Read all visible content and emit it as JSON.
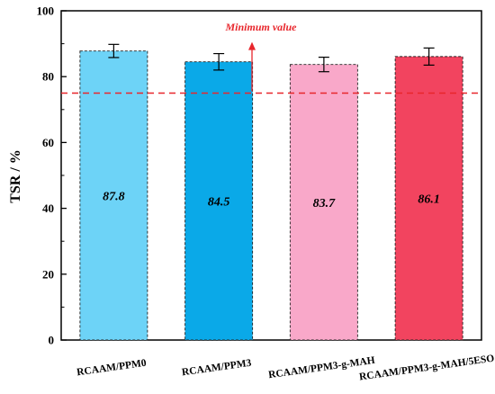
{
  "chart_data": {
    "type": "bar",
    "title": "",
    "xlabel": "",
    "ylabel": "TSR / %",
    "ylim": [
      0,
      100
    ],
    "yticks": [
      0,
      20,
      40,
      60,
      80,
      100
    ],
    "grid": false,
    "categories": [
      "RCAAM/PPM0",
      "RCAAM/PPM3",
      "RCAAM/PPM3-g-MAH",
      "RCAAM/PPM3-g-MAH/5ESO"
    ],
    "values": [
      87.8,
      84.5,
      83.7,
      86.1
    ],
    "errors": [
      2.0,
      2.5,
      2.2,
      2.6
    ],
    "data_labels": [
      "87.8",
      "84.5",
      "83.7",
      "86.1"
    ],
    "bar_colors": [
      "#6dd3f7",
      "#0aa9e8",
      "#f9a8c9",
      "#f2445f"
    ],
    "reference_line": {
      "value": 75,
      "label": "Minimum value",
      "color": "#e8262c"
    }
  }
}
